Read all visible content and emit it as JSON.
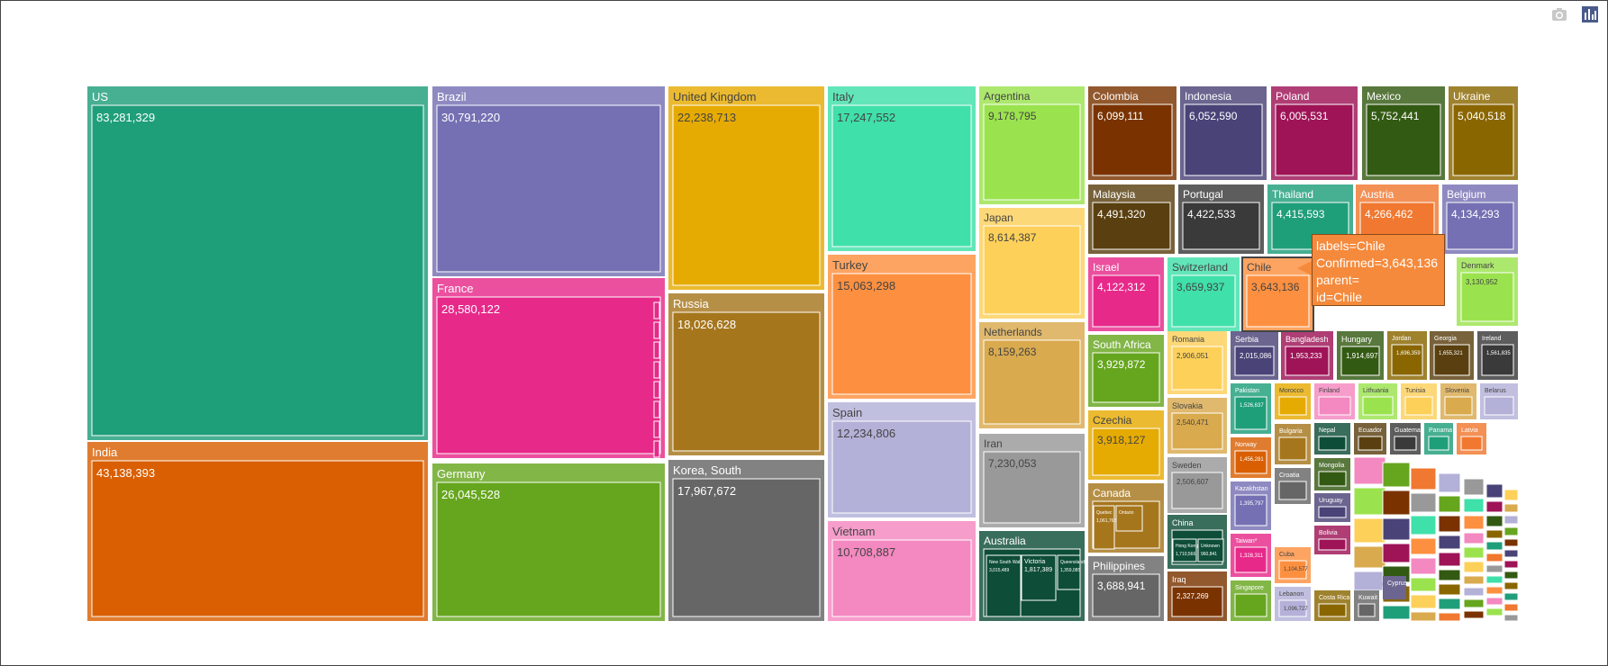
{
  "toolbar": {
    "icons": [
      "camera-icon",
      "bar-chart-icon"
    ]
  },
  "tooltip": {
    "lines": [
      "labels=Chile",
      "Confirmed=3,643,136",
      "parent=",
      "id=Chile"
    ]
  },
  "chart_data": {
    "type": "treemap",
    "title": "",
    "value_label": "Confirmed",
    "items": [
      {
        "label": "US",
        "value": 83281329,
        "color": "#1f9e7a"
      },
      {
        "label": "India",
        "value": 43138393,
        "color": "#d95f02"
      },
      {
        "label": "Brazil",
        "value": 30791220,
        "color": "#7570b3"
      },
      {
        "label": "France",
        "value": 28580122,
        "color": "#e7298a"
      },
      {
        "label": "Germany",
        "value": 26045528,
        "color": "#66a61e"
      },
      {
        "label": "United Kingdom",
        "value": 22238713,
        "color": "#e6ab02"
      },
      {
        "label": "Russia",
        "value": 18026628,
        "color": "#a6761d"
      },
      {
        "label": "Korea, South",
        "value": 17967672,
        "color": "#666666"
      },
      {
        "label": "Italy",
        "value": 17247552,
        "color": "#3fe0aa"
      },
      {
        "label": "Turkey",
        "value": 15063298,
        "color": "#fd9040"
      },
      {
        "label": "Spain",
        "value": 12234806,
        "color": "#b3b1d8"
      },
      {
        "label": "Vietnam",
        "value": 10708887,
        "color": "#f488c0"
      },
      {
        "label": "Argentina",
        "value": 9178795,
        "color": "#9be34e"
      },
      {
        "label": "Japan",
        "value": 8614387,
        "color": "#fdd05a"
      },
      {
        "label": "Netherlands",
        "value": 8159263,
        "color": "#d9aa4e"
      },
      {
        "label": "Iran",
        "value": 7230053,
        "color": "#999999"
      },
      {
        "label": "Australia",
        "value": 0,
        "color": "#0e4d38"
      },
      {
        "label": "Colombia",
        "value": 6099111,
        "color": "#7a3300"
      },
      {
        "label": "Indonesia",
        "value": 6052590,
        "color": "#4a4378"
      },
      {
        "label": "Poland",
        "value": 6005531,
        "color": "#9e1457"
      },
      {
        "label": "Mexico",
        "value": 5752441,
        "color": "#335a12"
      },
      {
        "label": "Ukraine",
        "value": 5040518,
        "color": "#8a6600"
      },
      {
        "label": "Malaysia",
        "value": 4491320,
        "color": "#5a4010"
      },
      {
        "label": "Portugal",
        "value": 4422533,
        "color": "#3a3a3a"
      },
      {
        "label": "Thailand",
        "value": 4415593,
        "color": "#1f9e7a"
      },
      {
        "label": "Austria",
        "value": 4266462,
        "color": "#f07830"
      },
      {
        "label": "Belgium",
        "value": 4134293,
        "color": "#7570b3"
      },
      {
        "label": "Israel",
        "value": 4122312,
        "color": "#e7298a"
      },
      {
        "label": "Switzerland",
        "value": 3659937,
        "color": "#3fe0aa"
      },
      {
        "label": "Chile",
        "value": 3643136,
        "color": "#fd9040"
      },
      {
        "label": "Denmark",
        "value": 3130952,
        "color": "#9be34e"
      },
      {
        "label": "South Africa",
        "value": 3929872,
        "color": "#66a61e"
      },
      {
        "label": "Czechia",
        "value": 3918127,
        "color": "#e6ab02"
      },
      {
        "label": "Canada",
        "value": 0,
        "color": "#a6761d"
      },
      {
        "label": "Philippines",
        "value": 3688941,
        "color": "#666666"
      },
      {
        "label": "Romania",
        "value": 2906051,
        "color": "#fdd05a"
      },
      {
        "label": "Slovakia",
        "value": 2540471,
        "color": "#d9aa4e"
      },
      {
        "label": "Sweden",
        "value": 2506607,
        "color": "#999999"
      },
      {
        "label": "China",
        "value": 0,
        "color": "#0e4d38"
      },
      {
        "label": "Iraq",
        "value": 2327269,
        "color": "#7a3300"
      },
      {
        "label": "Serbia",
        "value": 2015086,
        "color": "#4a4378"
      },
      {
        "label": "Bangladesh",
        "value": 1953233,
        "color": "#9e1457"
      },
      {
        "label": "Hungary",
        "value": 1914697,
        "color": "#335a12"
      },
      {
        "label": "Jordan",
        "value": 1696359,
        "color": "#8a6600"
      },
      {
        "label": "Georgia",
        "value": 1655321,
        "color": "#5a4010"
      },
      {
        "label": "Ireland",
        "value": 1561835,
        "color": "#3a3a3a"
      },
      {
        "label": "Pakistan",
        "value": 1526637,
        "color": "#1f9e7a"
      },
      {
        "label": "Morocco",
        "value": 0,
        "color": "#e6ab02"
      },
      {
        "label": "Finland",
        "value": 0,
        "color": "#f488c0"
      },
      {
        "label": "Lithuania",
        "value": 0,
        "color": "#9be34e"
      },
      {
        "label": "Tunisia",
        "value": 0,
        "color": "#fdd05a"
      },
      {
        "label": "Slovenia",
        "value": 0,
        "color": "#d9aa4e"
      },
      {
        "label": "Belarus",
        "value": 0,
        "color": "#b3b1d8"
      },
      {
        "label": "Norway",
        "value": 1456281,
        "color": "#d95f02"
      },
      {
        "label": "Bulgaria",
        "value": 0,
        "color": "#a6761d"
      },
      {
        "label": "Nepal",
        "value": 0,
        "color": "#0e4d38"
      },
      {
        "label": "Ecuador",
        "value": 0,
        "color": "#5a4010"
      },
      {
        "label": "Guatemala",
        "value": 0,
        "color": "#3a3a3a"
      },
      {
        "label": "Panama",
        "value": 0,
        "color": "#1f9e7a"
      },
      {
        "label": "Latvia",
        "value": 0,
        "color": "#f07830"
      },
      {
        "label": "Kazakhstan",
        "value": 1395797,
        "color": "#7570b3"
      },
      {
        "label": "Croatia",
        "value": 0,
        "color": "#666666"
      },
      {
        "label": "Mongolia",
        "value": 0,
        "color": "#335a12"
      },
      {
        "label": "Taiwan*",
        "value": 1328311,
        "color": "#e7298a"
      },
      {
        "label": "Uruguay",
        "value": 0,
        "color": "#4a4378"
      },
      {
        "label": "Bolivia",
        "value": 0,
        "color": "#9e1457"
      },
      {
        "label": "Cuba",
        "value": 1104577,
        "color": "#fd9040"
      },
      {
        "label": "Singapore",
        "value": 0,
        "color": "#66a61e"
      },
      {
        "label": "Lebanon",
        "value": 1096727,
        "color": "#b3b1d8"
      },
      {
        "label": "Costa Rica",
        "value": 0,
        "color": "#8a6600"
      },
      {
        "label": "Kuwait",
        "value": 0,
        "color": "#666666"
      },
      {
        "label": "Cyprus",
        "value": 0,
        "color": "#4a4378"
      }
    ],
    "sub_labels": {
      "Australia": [
        "New South Wales",
        "Victoria",
        "Queensland"
      ],
      "Australia_values": [
        "3,015,489",
        "1,817,389",
        "1,359,085"
      ],
      "Canada": [
        "Quebec",
        "Ontario"
      ],
      "Canada_values": [
        "1,061,763",
        ""
      ],
      "China": [
        "Hong Kong",
        "Unknown"
      ],
      "China_values": [
        "1,710,566",
        "960,841"
      ]
    }
  }
}
